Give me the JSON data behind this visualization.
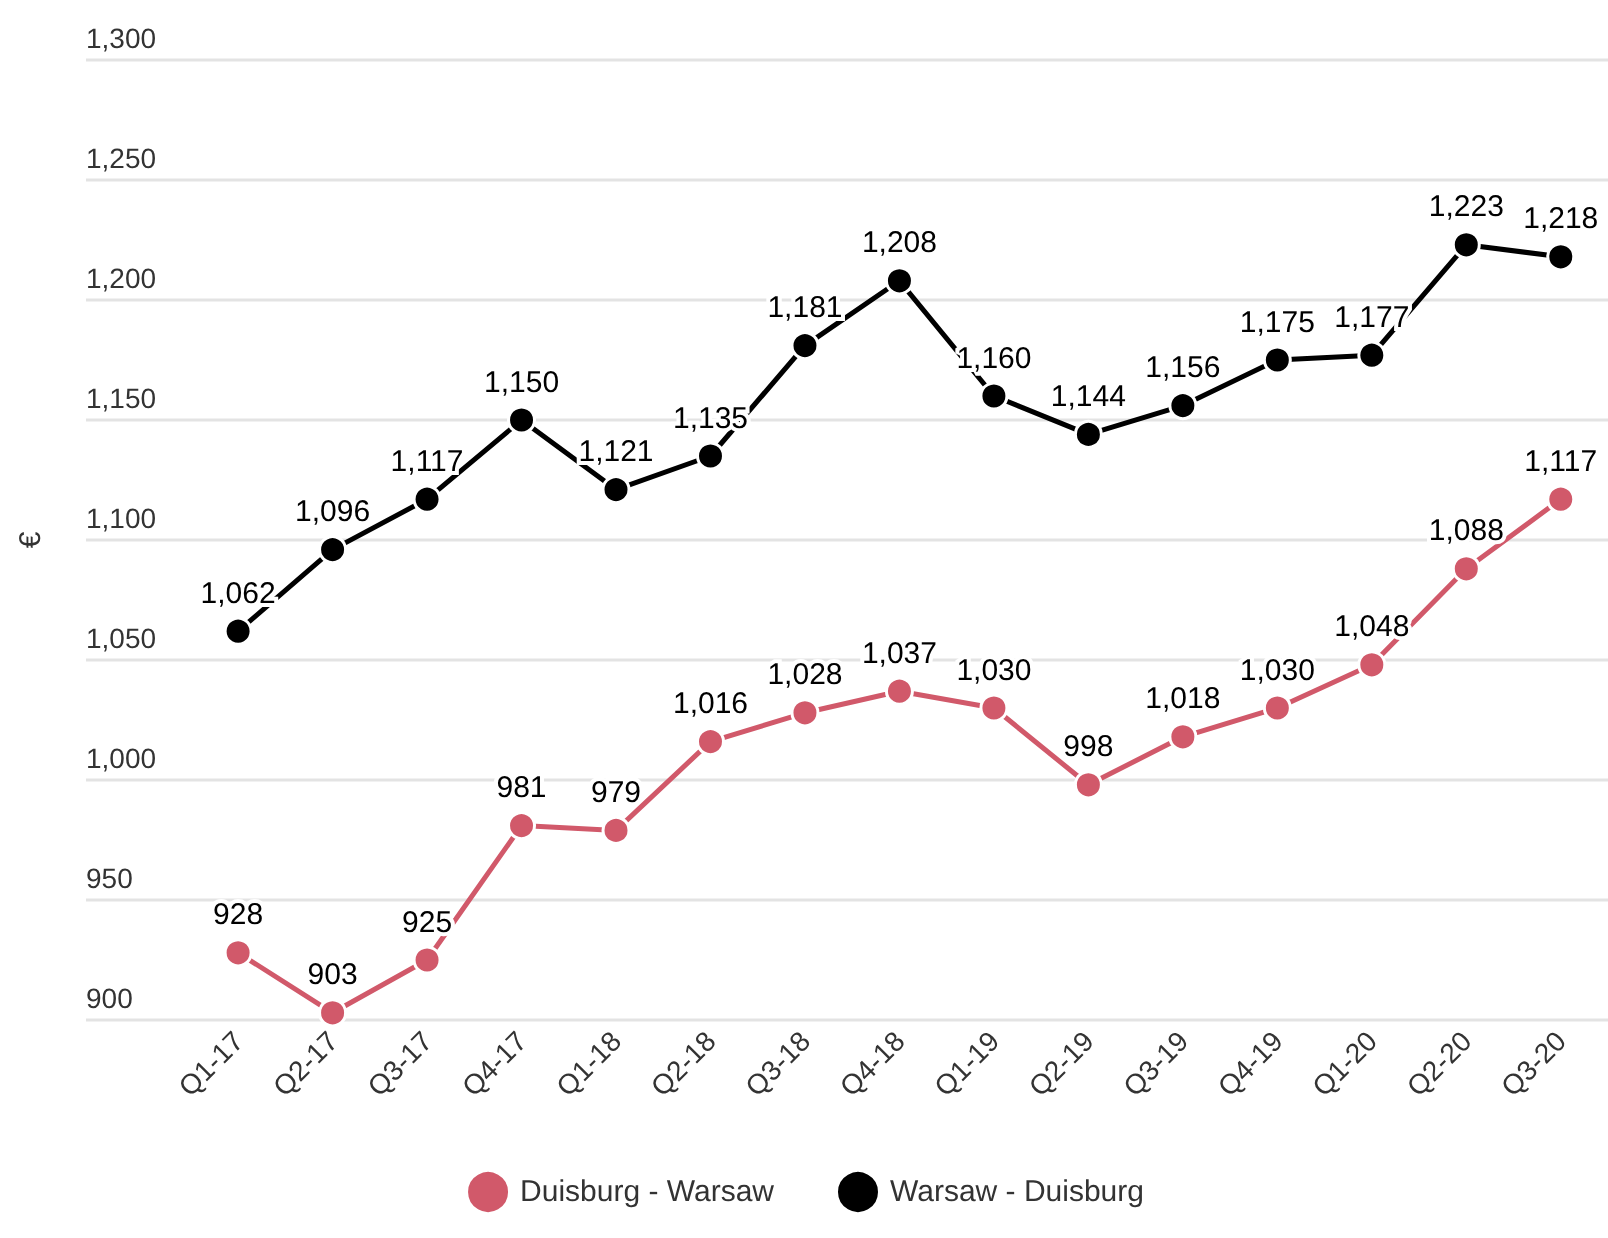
{
  "chart_data": {
    "type": "line",
    "ylabel": "€",
    "categories": [
      "Q1-17",
      "Q2-17",
      "Q3-17",
      "Q4-17",
      "Q1-18",
      "Q2-18",
      "Q3-18",
      "Q4-18",
      "Q1-19",
      "Q2-19",
      "Q3-19",
      "Q4-19",
      "Q1-20",
      "Q2-20",
      "Q3-20"
    ],
    "series": [
      {
        "name": "Duisburg - Warsaw",
        "color": "#d1596a",
        "values": [
          928,
          903,
          925,
          981,
          979,
          1016,
          1028,
          1037,
          1030,
          998,
          1018,
          1030,
          1048,
          1088,
          1117
        ],
        "value_labels": [
          "928",
          "903",
          "925",
          "981",
          "979",
          "1,016",
          "1,028",
          "1,037",
          "1,030",
          "998",
          "1,018",
          "1,030",
          "1,048",
          "1,088",
          "1,117"
        ]
      },
      {
        "name": "Warsaw - Duisburg",
        "color": "#000000",
        "values": [
          1062,
          1096,
          1117,
          1150,
          1121,
          1135,
          1181,
          1208,
          1160,
          1144,
          1156,
          1175,
          1177,
          1223,
          1218
        ],
        "value_labels": [
          "1,062",
          "1,096",
          "1,117",
          "1,150",
          "1,121",
          "1,135",
          "1,181",
          "1,208",
          "1,160",
          "1,144",
          "1,156",
          "1,175",
          "1,177",
          "1,223",
          "1,218"
        ]
      }
    ],
    "ylim": [
      900,
      1300
    ],
    "yticks": [
      900,
      950,
      {
        "value": 1000,
        "label": "1,000"
      },
      {
        "value": 1050,
        "label": "1,050"
      },
      {
        "value": 1100,
        "label": "1,100"
      },
      {
        "value": 1150,
        "label": "1,150"
      },
      {
        "value": 1200,
        "label": "1,200"
      },
      {
        "value": 1250,
        "label": "1,250"
      },
      {
        "value": 1300,
        "label": "1,300"
      }
    ],
    "grid": "y",
    "legend": "bottom",
    "marker": "circle",
    "line_style": "solid"
  }
}
